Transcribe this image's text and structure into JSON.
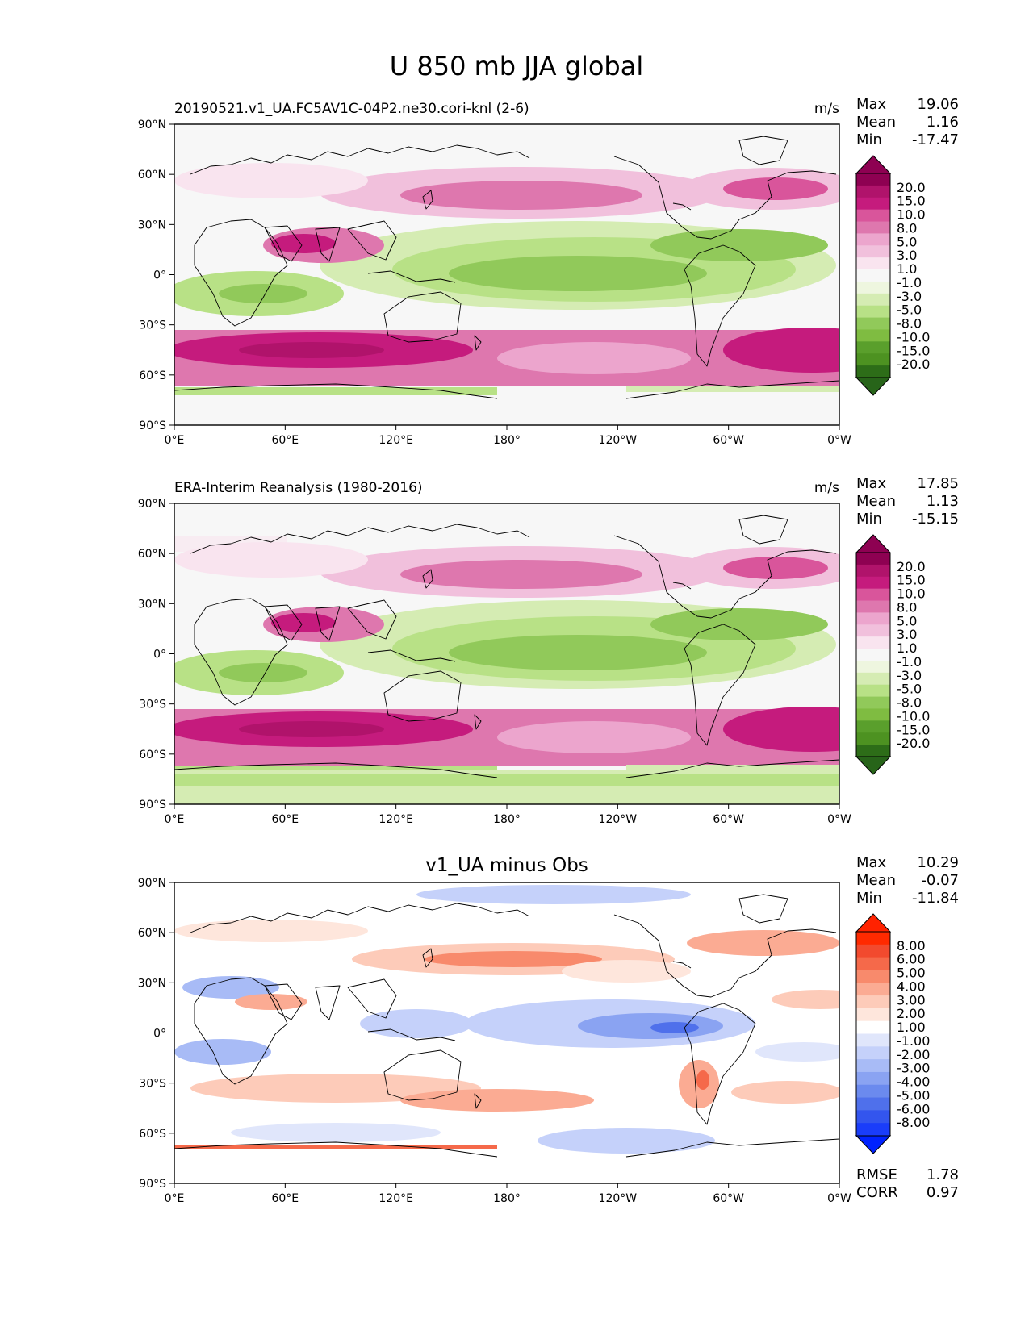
{
  "figure": {
    "title": "U 850 mb JJA global"
  },
  "axes": {
    "lat_ticks": [
      "90°N",
      "60°N",
      "30°N",
      "0°",
      "30°S",
      "60°S",
      "90°S"
    ],
    "lon_ticks": [
      "0°E",
      "60°E",
      "120°E",
      "180°",
      "120°W",
      "60°W",
      "0°W"
    ]
  },
  "panels": [
    {
      "id": "test",
      "left_title": "20190521.v1_UA.FC5AV1C-04P2.ne30.cori-knl (2-6)",
      "center_title": "",
      "units": "m/s",
      "stats": [
        {
          "label": "Max",
          "value": "19.06"
        },
        {
          "label": "Mean",
          "value": "1.16"
        },
        {
          "label": "Min",
          "value": "-17.47"
        }
      ],
      "colorbar": {
        "labels": [
          "20.0",
          "15.0",
          "10.0",
          "8.0",
          "5.0",
          "3.0",
          "1.0",
          "-1.0",
          "-3.0",
          "-5.0",
          "-8.0",
          "-10.0",
          "-15.0",
          "-20.0"
        ],
        "colors": [
          "#8e0152",
          "#b0136b",
          "#c51b7d",
          "#d9559b",
          "#de77ae",
          "#eca5cd",
          "#f1c0dc",
          "#f9e4ef",
          "#f7f7f7",
          "#eef6df",
          "#d5ecb3",
          "#b8e186",
          "#91c95a",
          "#7fbc41",
          "#5a9f2c",
          "#4d9221",
          "#2d6d18"
        ],
        "min_color": "#276419",
        "max_color": "#8e0152"
      },
      "footer_stats": []
    },
    {
      "id": "reference",
      "left_title": "ERA-Interim Reanalysis (1980-2016)",
      "center_title": "",
      "units": "m/s",
      "stats": [
        {
          "label": "Max",
          "value": "17.85"
        },
        {
          "label": "Mean",
          "value": "1.13"
        },
        {
          "label": "Min",
          "value": "-15.15"
        }
      ],
      "colorbar": {
        "labels": [
          "20.0",
          "15.0",
          "10.0",
          "8.0",
          "5.0",
          "3.0",
          "1.0",
          "-1.0",
          "-3.0",
          "-5.0",
          "-8.0",
          "-10.0",
          "-15.0",
          "-20.0"
        ],
        "colors": [
          "#8e0152",
          "#b0136b",
          "#c51b7d",
          "#d9559b",
          "#de77ae",
          "#eca5cd",
          "#f1c0dc",
          "#f9e4ef",
          "#f7f7f7",
          "#eef6df",
          "#d5ecb3",
          "#b8e186",
          "#91c95a",
          "#7fbc41",
          "#5a9f2c",
          "#4d9221",
          "#2d6d18"
        ],
        "min_color": "#276419",
        "max_color": "#8e0152"
      },
      "footer_stats": []
    },
    {
      "id": "difference",
      "left_title": "",
      "center_title": "v1_UA minus Obs",
      "units": "",
      "stats": [
        {
          "label": "Max",
          "value": "10.29"
        },
        {
          "label": "Mean",
          "value": "-0.07"
        },
        {
          "label": "Min",
          "value": "-11.84"
        }
      ],
      "colorbar": {
        "labels": [
          "8.00",
          "6.00",
          "5.00",
          "4.00",
          "3.00",
          "2.00",
          "1.00",
          "-1.00",
          "-2.00",
          "-3.00",
          "-4.00",
          "-5.00",
          "-6.00",
          "-8.00"
        ],
        "colors": [
          "#ff2a00",
          "#f24a2e",
          "#f5694a",
          "#f88a6c",
          "#fbab93",
          "#fdcbb9",
          "#fee6dc",
          "#ffffff",
          "#e0e6fb",
          "#c5d1fa",
          "#a8bbf6",
          "#8aa3f2",
          "#6b8aee",
          "#4f70eb",
          "#3355ee",
          "#1a3dfa"
        ],
        "min_color": "#0022ff",
        "max_color": "#ff2200"
      },
      "footer_stats": [
        {
          "label": "RMSE",
          "value": "1.78"
        },
        {
          "label": "CORR",
          "value": "0.97"
        }
      ]
    }
  ],
  "chart_data": [
    {
      "type": "heatmap",
      "title": "20190521.v1_UA.FC5AV1C-04P2.ne30.cori-knl (2-6)",
      "variable": "U 850 mb JJA global",
      "units": "m/s",
      "xlim": [
        0,
        360
      ],
      "ylim": [
        -90,
        90
      ],
      "contour_levels": [
        -20,
        -15,
        -10,
        -8,
        -5,
        -3,
        -1,
        1,
        3,
        5,
        8,
        10,
        15,
        20
      ],
      "zonal_band_means": [
        {
          "lat": 75,
          "value": 0.5
        },
        {
          "lat": 60,
          "value": 3
        },
        {
          "lat": 45,
          "value": 6
        },
        {
          "lat": 30,
          "value": 1
        },
        {
          "lat": 15,
          "value": -6
        },
        {
          "lat": 0,
          "value": -7
        },
        {
          "lat": -15,
          "value": -6
        },
        {
          "lat": -30,
          "value": 3
        },
        {
          "lat": -45,
          "value": 14
        },
        {
          "lat": -60,
          "value": 8
        },
        {
          "lat": -75,
          "value": -2
        }
      ],
      "stats": {
        "max": 19.06,
        "mean": 1.16,
        "min": -17.47
      }
    },
    {
      "type": "heatmap",
      "title": "ERA-Interim Reanalysis (1980-2016)",
      "variable": "U 850 mb JJA global",
      "units": "m/s",
      "xlim": [
        0,
        360
      ],
      "ylim": [
        -90,
        90
      ],
      "contour_levels": [
        -20,
        -15,
        -10,
        -8,
        -5,
        -3,
        -1,
        1,
        3,
        5,
        8,
        10,
        15,
        20
      ],
      "zonal_band_means": [
        {
          "lat": 75,
          "value": 1
        },
        {
          "lat": 60,
          "value": 2
        },
        {
          "lat": 45,
          "value": 5
        },
        {
          "lat": 30,
          "value": 0
        },
        {
          "lat": 15,
          "value": -5
        },
        {
          "lat": 0,
          "value": -6
        },
        {
          "lat": -15,
          "value": -5
        },
        {
          "lat": -30,
          "value": 3
        },
        {
          "lat": -45,
          "value": 13
        },
        {
          "lat": -60,
          "value": 8
        },
        {
          "lat": -75,
          "value": -4
        }
      ],
      "stats": {
        "max": 17.85,
        "mean": 1.13,
        "min": -15.15
      }
    },
    {
      "type": "heatmap",
      "title": "v1_UA minus Obs",
      "variable": "U 850 mb JJA global",
      "units": "m/s",
      "xlim": [
        0,
        360
      ],
      "ylim": [
        -90,
        90
      ],
      "contour_levels": [
        -8,
        -6,
        -5,
        -4,
        -3,
        -2,
        -1,
        1,
        2,
        3,
        4,
        5,
        6,
        8
      ],
      "zonal_band_means": [
        {
          "lat": 75,
          "value": -0.5
        },
        {
          "lat": 60,
          "value": 1
        },
        {
          "lat": 45,
          "value": 1.5
        },
        {
          "lat": 30,
          "value": -0.5
        },
        {
          "lat": 15,
          "value": -0.5
        },
        {
          "lat": 0,
          "value": -1
        },
        {
          "lat": -15,
          "value": -0.5
        },
        {
          "lat": -30,
          "value": 0.5
        },
        {
          "lat": -45,
          "value": 1.5
        },
        {
          "lat": -60,
          "value": -0.5
        },
        {
          "lat": -75,
          "value": 0.5
        }
      ],
      "stats": {
        "max": 10.29,
        "mean": -0.07,
        "min": -11.84,
        "rmse": 1.78,
        "corr": 0.97
      }
    }
  ]
}
